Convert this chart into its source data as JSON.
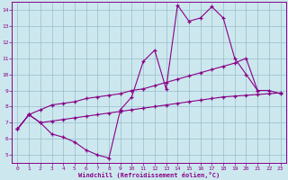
{
  "xlabel": "Windchill (Refroidissement éolien,°C)",
  "bg_color": "#cce8ee",
  "line_color": "#880088",
  "grid_color": "#99bbcc",
  "xlim": [
    -0.5,
    23.5
  ],
  "ylim": [
    4.5,
    14.5
  ],
  "xticks": [
    0,
    1,
    2,
    3,
    4,
    5,
    6,
    7,
    8,
    9,
    10,
    11,
    12,
    13,
    14,
    15,
    16,
    17,
    18,
    19,
    20,
    21,
    22,
    23
  ],
  "yticks": [
    5,
    6,
    7,
    8,
    9,
    10,
    11,
    12,
    13,
    14
  ],
  "s1_x": [
    0,
    1,
    2,
    3,
    4,
    5,
    6,
    7,
    8,
    9,
    10,
    11,
    12,
    13,
    14,
    15,
    16,
    17,
    18,
    19,
    20,
    21
  ],
  "s1_y": [
    6.6,
    7.5,
    7.0,
    6.3,
    6.1,
    5.8,
    5.3,
    5.0,
    4.8,
    7.8,
    8.6,
    10.8,
    11.5,
    9.1,
    14.3,
    13.3,
    13.5,
    14.2,
    13.5,
    11.0,
    10.0,
    9.0
  ],
  "s2_x": [
    0,
    1,
    2,
    3,
    4,
    5,
    6,
    7,
    8,
    9,
    10,
    11,
    12,
    13,
    14,
    15,
    16,
    17,
    18,
    19,
    20,
    21,
    22,
    23
  ],
  "s2_y": [
    6.6,
    7.5,
    7.8,
    8.1,
    8.2,
    8.3,
    8.5,
    8.6,
    8.7,
    8.8,
    9.0,
    9.1,
    9.3,
    9.5,
    9.7,
    9.9,
    10.1,
    10.3,
    10.5,
    10.7,
    11.0,
    9.0,
    9.0,
    8.8
  ],
  "s3_x": [
    0,
    1,
    2,
    3,
    4,
    5,
    6,
    7,
    8,
    9,
    10,
    11,
    12,
    13,
    14,
    15,
    16,
    17,
    18,
    19,
    20,
    21,
    22,
    23
  ],
  "s3_y": [
    6.6,
    7.5,
    7.0,
    7.1,
    7.2,
    7.3,
    7.4,
    7.5,
    7.6,
    7.7,
    7.8,
    7.9,
    8.0,
    8.1,
    8.2,
    8.3,
    8.4,
    8.5,
    8.6,
    8.65,
    8.7,
    8.75,
    8.8,
    8.85
  ]
}
